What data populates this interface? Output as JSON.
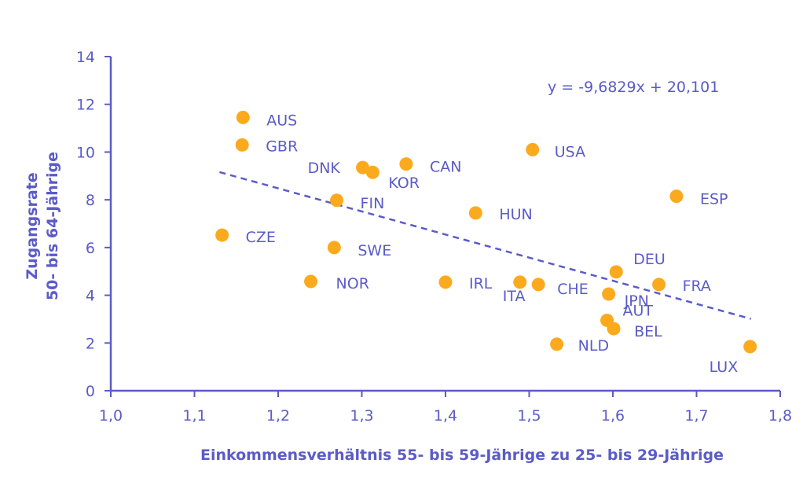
{
  "chart_data": {
    "type": "scatter",
    "xlabel": "Einkommensverhältnis 55- bis 59-Jährige zu 25- bis 29-Jährige",
    "ylabel": "Zugangsrate\n50- bis 64-Jährige",
    "xlim": [
      1.0,
      1.8
    ],
    "ylim": [
      0,
      14
    ],
    "xticks": [
      "1,0",
      "1,1",
      "1,2",
      "1,3",
      "1,4",
      "1,5",
      "1,6",
      "1,7",
      "1,8"
    ],
    "yticks": [
      "0",
      "2",
      "4",
      "6",
      "8",
      "10",
      "12",
      "14"
    ],
    "grid": false,
    "trendline": {
      "equation": "y = -9,6829x + 20,101",
      "slope": -9.6829,
      "intercept": 20.101,
      "x_range": [
        1.13,
        1.765
      ]
    },
    "colors": {
      "points": "#fbaa1e",
      "axes": "#5b5bc8",
      "trendline": "#5b5bc8"
    },
    "points": [
      {
        "label": "AUS",
        "x": 1.158,
        "y": 11.45
      },
      {
        "label": "GBR",
        "x": 1.157,
        "y": 10.3
      },
      {
        "label": "DNK",
        "x": 1.301,
        "y": 9.35
      },
      {
        "label": "KOR",
        "x": 1.313,
        "y": 9.15
      },
      {
        "label": "CAN",
        "x": 1.353,
        "y": 9.5
      },
      {
        "label": "USA",
        "x": 1.504,
        "y": 10.1
      },
      {
        "label": "FIN",
        "x": 1.27,
        "y": 7.98
      },
      {
        "label": "ESP",
        "x": 1.676,
        "y": 8.15
      },
      {
        "label": "HUN",
        "x": 1.436,
        "y": 7.45
      },
      {
        "label": "CZE",
        "x": 1.133,
        "y": 6.52
      },
      {
        "label": "SWE",
        "x": 1.267,
        "y": 6.0
      },
      {
        "label": "DEU",
        "x": 1.604,
        "y": 4.98
      },
      {
        "label": "NOR",
        "x": 1.239,
        "y": 4.58
      },
      {
        "label": "IRL",
        "x": 1.4,
        "y": 4.55
      },
      {
        "label": "ITA",
        "x": 1.489,
        "y": 4.55
      },
      {
        "label": "CHE",
        "x": 1.511,
        "y": 4.45
      },
      {
        "label": "FRA",
        "x": 1.655,
        "y": 4.45
      },
      {
        "label": "JPN",
        "x": 1.595,
        "y": 4.05
      },
      {
        "label": "AUT",
        "x": 1.593,
        "y": 2.95
      },
      {
        "label": "BEL",
        "x": 1.601,
        "y": 2.6
      },
      {
        "label": "NLD",
        "x": 1.533,
        "y": 1.95
      },
      {
        "label": "LUX",
        "x": 1.764,
        "y": 1.85
      }
    ]
  }
}
